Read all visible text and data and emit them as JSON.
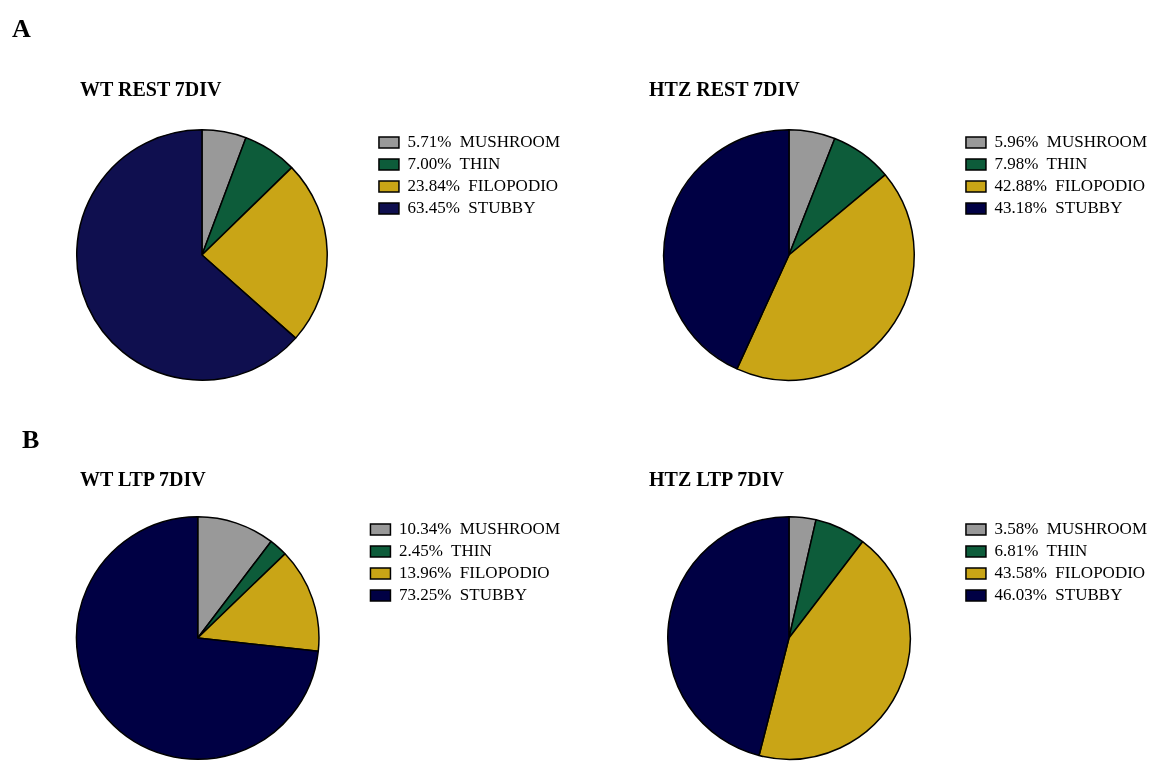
{
  "chart_data": [
    {
      "type": "pie",
      "title": "WT REST 7DIV",
      "annotations": [
        "A"
      ],
      "legend": "right",
      "categories": [
        "5.71%  MUSHROOM",
        "7.00%  THIN",
        "23.84%  FILOPODIO",
        "63.45%  STUBBY"
      ],
      "values": [
        5.71,
        7.0,
        23.84,
        63.45
      ],
      "colors": [
        "#999999",
        "#0d5c3a",
        "#c9a516",
        "#0f0f4f"
      ]
    },
    {
      "type": "pie",
      "title": "HTZ REST 7DIV",
      "legend": "right",
      "categories": [
        "5.96%  MUSHROOM",
        "7.98%  THIN",
        "42.88%  FILOPODIO",
        "43.18%  STUBBY"
      ],
      "values": [
        5.96,
        7.98,
        42.88,
        43.18
      ],
      "colors": [
        "#999999",
        "#0d5c3a",
        "#c9a516",
        "#000044"
      ]
    },
    {
      "type": "pie",
      "title": "WT LTP 7DIV",
      "annotations": [
        "B"
      ],
      "legend": "right",
      "categories": [
        "10.34%  MUSHROOM",
        "2.45%  THIN",
        "13.96%  FILOPODIO",
        "73.25%  STUBBY"
      ],
      "values": [
        10.34,
        2.45,
        13.96,
        73.25
      ],
      "colors": [
        "#999999",
        "#0d5c3a",
        "#c9a516",
        "#000044"
      ]
    },
    {
      "type": "pie",
      "title": "HTZ LTP 7DIV",
      "legend": "right",
      "categories": [
        "3.58%  MUSHROOM",
        "6.81%  THIN",
        "43.58%  FILOPODIO",
        "46.03%  STUBBY"
      ],
      "values": [
        3.58,
        6.81,
        43.58,
        46.03
      ],
      "colors": [
        "#999999",
        "#0d5c3a",
        "#c9a516",
        "#000044"
      ]
    }
  ]
}
